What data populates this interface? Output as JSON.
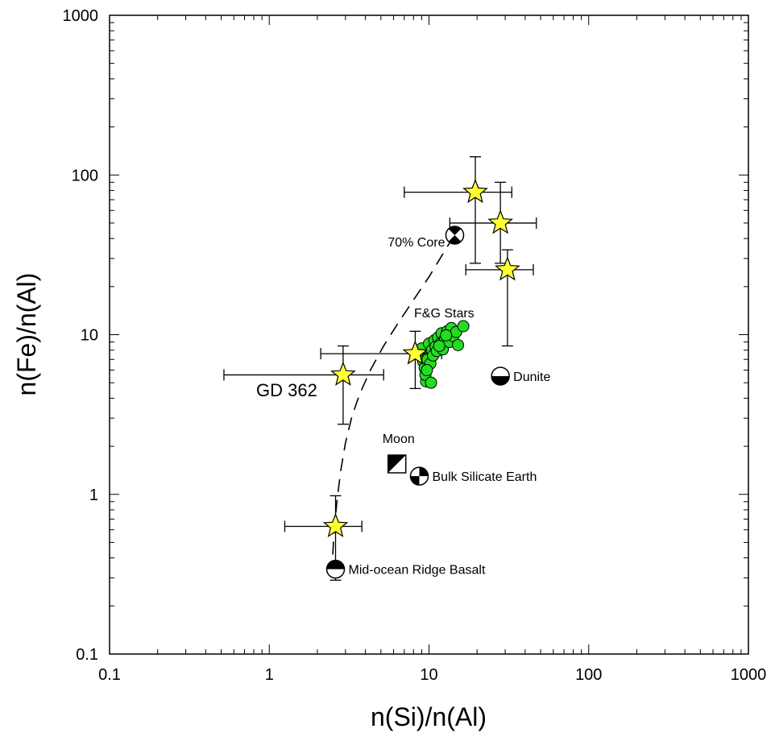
{
  "chart_data": {
    "type": "scatter",
    "xlabel": "n(Si)/n(Al)",
    "ylabel": "n(Fe)/n(Al)",
    "x_scale": "log",
    "y_scale": "log",
    "xlim": [
      0.1,
      1000
    ],
    "ylim": [
      0.1,
      1000
    ],
    "x_ticks": [
      "0.1",
      "1",
      "10",
      "100",
      "1000"
    ],
    "y_ticks": [
      "0.1",
      "1",
      "10",
      "100",
      "1000"
    ],
    "grid": false,
    "colors": {
      "star": "#ffff33",
      "fg_stars": "#22dd22",
      "curve": "#000000"
    },
    "stars": [
      {
        "x": 19.5,
        "y": 78,
        "x_err": [
          7,
          33
        ],
        "y_err": [
          28,
          130
        ]
      },
      {
        "x": 28,
        "y": 50,
        "x_err": [
          13.5,
          47
        ],
        "y_err": [
          28,
          90
        ]
      },
      {
        "x": 31,
        "y": 25.5,
        "x_err": [
          17,
          45
        ],
        "y_err": [
          8.5,
          34
        ]
      },
      {
        "x": 8.2,
        "y": 7.6,
        "x_err": [
          2.1,
          12
        ],
        "y_err": [
          4.6,
          10.5
        ]
      },
      {
        "x": 2.9,
        "y": 5.6,
        "x_err": [
          0.52,
          5.2
        ],
        "y_err": [
          2.75,
          8.5
        ]
      },
      {
        "x": 2.6,
        "y": 0.63,
        "x_err": [
          1.25,
          3.8
        ],
        "y_err": [
          0.29,
          0.98
        ]
      }
    ],
    "fg_stars": [
      [
        8.5,
        7.6
      ],
      [
        9.0,
        8.2
      ],
      [
        9.2,
        6.8
      ],
      [
        9.4,
        6.2
      ],
      [
        9.6,
        5.1
      ],
      [
        9.5,
        5.6
      ],
      [
        9.8,
        7.0
      ],
      [
        10.0,
        8.8
      ],
      [
        10.2,
        6.6
      ],
      [
        10.4,
        8.0
      ],
      [
        10.6,
        7.4
      ],
      [
        10.8,
        9.2
      ],
      [
        11.0,
        8.4
      ],
      [
        11.2,
        7.9
      ],
      [
        11.4,
        9.6
      ],
      [
        11.8,
        8.8
      ],
      [
        12.0,
        10.2
      ],
      [
        12.2,
        8.1
      ],
      [
        12.6,
        9.4
      ],
      [
        13.0,
        10.5
      ],
      [
        13.4,
        9.0
      ],
      [
        13.8,
        11.0
      ],
      [
        14.2,
        9.8
      ],
      [
        14.8,
        10.4
      ],
      [
        15.2,
        8.6
      ],
      [
        16.4,
        11.3
      ],
      [
        10.3,
        5.0
      ],
      [
        9.7,
        6.0
      ],
      [
        11.6,
        8.5
      ],
      [
        12.8,
        9.9
      ]
    ],
    "reference_points": [
      {
        "label": "70% Core",
        "x": 14.5,
        "y": 42,
        "symbol": "quarter-x"
      },
      {
        "label": "Dunite",
        "x": 28,
        "y": 5.5,
        "symbol": "half-bottom"
      },
      {
        "label": "Moon",
        "x": 6.3,
        "y": 1.55,
        "symbol": "square-diagonal"
      },
      {
        "label": "Bulk Silicate Earth",
        "x": 8.7,
        "y": 1.3,
        "symbol": "quarters"
      },
      {
        "label": "Mid-ocean Ridge Basalt",
        "x": 2.6,
        "y": 0.34,
        "symbol": "half-top"
      }
    ],
    "mixing_curve": [
      [
        2.5,
        0.42
      ],
      [
        2.55,
        0.6
      ],
      [
        2.65,
        0.9
      ],
      [
        2.8,
        1.4
      ],
      [
        3.0,
        2.1
      ],
      [
        3.3,
        3.1
      ],
      [
        3.7,
        4.3
      ],
      [
        4.3,
        6.0
      ],
      [
        5.2,
        8.5
      ],
      [
        6.4,
        11.8
      ],
      [
        8.0,
        16.5
      ],
      [
        10.0,
        23
      ],
      [
        12.2,
        32
      ],
      [
        14.2,
        41
      ]
    ],
    "annotations": {
      "fg_label": "F&G Stars",
      "gd_label": "GD 362"
    }
  }
}
